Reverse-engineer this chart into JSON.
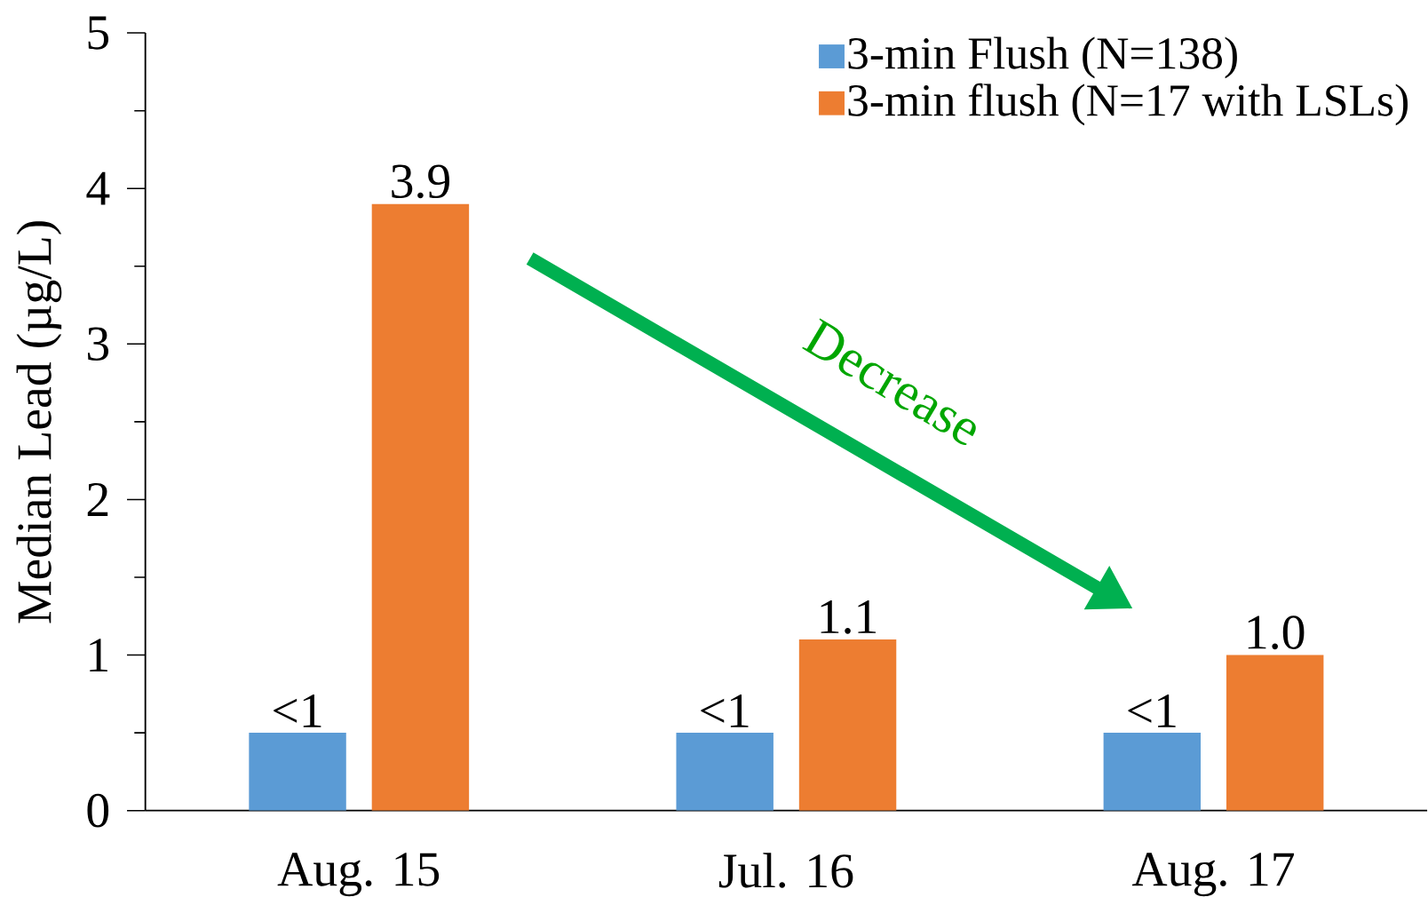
{
  "chart_data": {
    "type": "bar",
    "ylabel": "Median Lead (µg/L)",
    "categories": [
      "Aug. 15",
      "Jul. 16",
      "Aug. 17"
    ],
    "series": [
      {
        "name": "3-min Flush (N=138)",
        "color": "#5b9bd5",
        "values": [
          0.5,
          0.5,
          0.5
        ],
        "value_labels": [
          "<1",
          "<1",
          "<1"
        ]
      },
      {
        "name": "3-min flush (N=17 with LSLs)",
        "color": "#ed7d31",
        "values": [
          3.9,
          1.1,
          1.0
        ],
        "value_labels": [
          "3.9",
          "1.1",
          "1.0"
        ]
      }
    ],
    "ylim": [
      0,
      5
    ],
    "yticks": [
      0,
      1,
      2,
      3,
      4,
      5
    ],
    "grid": false,
    "legend": "top right",
    "annotations": [
      "Decrease"
    ]
  }
}
